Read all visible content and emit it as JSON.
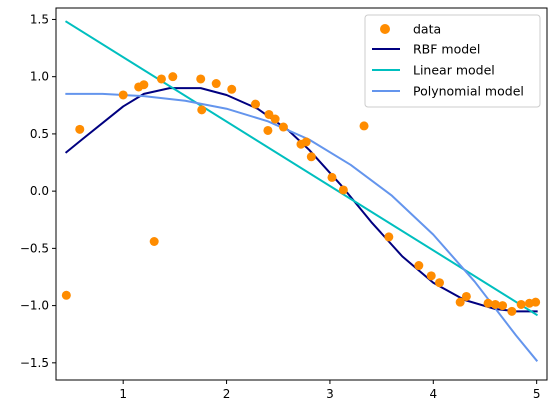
{
  "chart_data": {
    "type": "scatter",
    "title": "",
    "xlabel": "",
    "ylabel": "",
    "xlim": [
      0.35,
      5.1
    ],
    "ylim": [
      -1.65,
      1.6
    ],
    "xticks": [
      1,
      2,
      3,
      4,
      5
    ],
    "yticks": [
      -1.5,
      -1.0,
      -0.5,
      0.0,
      0.5,
      1.0,
      1.5
    ],
    "xtick_labels": [
      "1",
      "2",
      "3",
      "4",
      "5"
    ],
    "ytick_labels": [
      "−1.5",
      "−1.0",
      "−0.5",
      "0.0",
      "0.5",
      "1.0",
      "1.5"
    ],
    "grid": false,
    "legend_position": "top-right",
    "scatter": {
      "name": "data",
      "color": "#ff8c00",
      "points": [
        [
          0.45,
          -0.91
        ],
        [
          0.58,
          0.54
        ],
        [
          1.0,
          0.84
        ],
        [
          1.15,
          0.91
        ],
        [
          1.2,
          0.93
        ],
        [
          1.3,
          -0.44
        ],
        [
          1.37,
          0.98
        ],
        [
          1.48,
          1.0
        ],
        [
          1.75,
          0.98
        ],
        [
          1.76,
          0.71
        ],
        [
          1.9,
          0.94
        ],
        [
          2.05,
          0.89
        ],
        [
          2.28,
          0.76
        ],
        [
          2.4,
          0.53
        ],
        [
          2.41,
          0.67
        ],
        [
          2.47,
          0.63
        ],
        [
          2.55,
          0.56
        ],
        [
          2.72,
          0.41
        ],
        [
          2.77,
          0.43
        ],
        [
          2.82,
          0.3
        ],
        [
          3.02,
          0.12
        ],
        [
          3.13,
          0.01
        ],
        [
          3.33,
          0.57
        ],
        [
          3.57,
          -0.4
        ],
        [
          3.86,
          -0.65
        ],
        [
          3.98,
          -0.74
        ],
        [
          4.06,
          -0.8
        ],
        [
          4.26,
          -0.97
        ],
        [
          4.32,
          -0.92
        ],
        [
          4.53,
          -0.98
        ],
        [
          4.6,
          -0.99
        ],
        [
          4.67,
          -1.0
        ],
        [
          4.76,
          -1.05
        ],
        [
          4.85,
          -0.99
        ],
        [
          4.93,
          -0.98
        ],
        [
          4.99,
          -0.97
        ]
      ]
    },
    "series": [
      {
        "name": "RBF model",
        "color": "#000080",
        "x": [
          0.45,
          0.6,
          1.0,
          1.2,
          1.45,
          1.75,
          2.0,
          2.3,
          2.6,
          2.8,
          3.1,
          3.4,
          3.7,
          4.0,
          4.3,
          4.6,
          4.8,
          5.0
        ],
        "y": [
          0.34,
          0.45,
          0.74,
          0.85,
          0.9,
          0.9,
          0.84,
          0.72,
          0.53,
          0.36,
          0.06,
          -0.27,
          -0.57,
          -0.8,
          -0.95,
          -1.03,
          -1.05,
          -1.05
        ]
      },
      {
        "name": "Linear model",
        "color": "#00bfbf",
        "x": [
          0.45,
          5.0
        ],
        "y": [
          1.48,
          -1.08
        ]
      },
      {
        "name": "Polynomial model",
        "color": "#6495ed",
        "x": [
          0.45,
          0.8,
          1.2,
          1.6,
          2.0,
          2.4,
          2.8,
          3.2,
          3.6,
          4.0,
          4.4,
          4.8,
          5.0
        ],
        "y": [
          0.85,
          0.85,
          0.83,
          0.79,
          0.72,
          0.61,
          0.45,
          0.23,
          -0.04,
          -0.38,
          -0.79,
          -1.26,
          -1.48
        ]
      }
    ],
    "legend": {
      "entries": [
        "data",
        "RBF model",
        "Linear model",
        "Polynomial model"
      ]
    }
  }
}
